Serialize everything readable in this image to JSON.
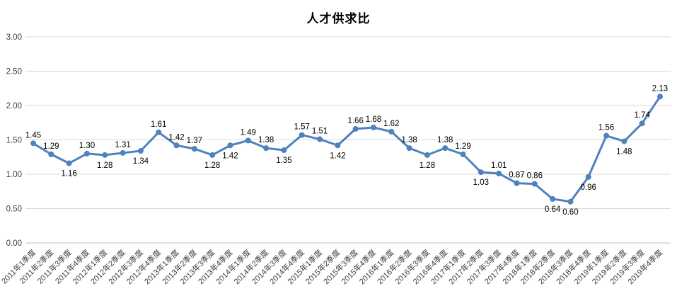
{
  "chart_data": {
    "type": "line",
    "title": "人才供求比",
    "xlabel": "",
    "ylabel": "",
    "ylim": [
      0,
      3
    ],
    "ytick_step": 0.5,
    "ytick_labels": [
      "0.00",
      "0.50",
      "1.00",
      "1.50",
      "2.00",
      "2.50",
      "3.00"
    ],
    "grid": "horizontal",
    "legend_position": "none",
    "categories": [
      "2011年1季度",
      "2011年2季度",
      "2011年3季度",
      "2011年4季度",
      "2012年1季度",
      "2012年2季度",
      "2012年3季度",
      "2012年4季度",
      "2013年1季度",
      "2013年2季度",
      "2013年3季度",
      "2013年4季度",
      "2014年1季度",
      "2014年2季度",
      "2014年3季度",
      "2014年4季度",
      "2015年1季度",
      "2015年2季度",
      "2015年3季度",
      "2015年4季度",
      "2016年1季度",
      "2016年2季度",
      "2016年3季度",
      "2016年4季度",
      "2017年1季度",
      "2017年2季度",
      "2017年3季度",
      "2017年4季度",
      "2018年1季度",
      "2018年2季度",
      "2018年3季度",
      "2018年4季度",
      "2019年1季度",
      "2019年2季度",
      "2019年3季度",
      "2019年4季度"
    ],
    "series": [
      {
        "name": "人才供求比",
        "values": [
          1.45,
          1.29,
          1.16,
          1.3,
          1.28,
          1.31,
          1.34,
          1.61,
          1.42,
          1.37,
          1.28,
          1.42,
          1.49,
          1.38,
          1.35,
          1.57,
          1.51,
          1.42,
          1.66,
          1.68,
          1.62,
          1.38,
          1.28,
          1.38,
          1.29,
          1.03,
          1.01,
          0.87,
          0.86,
          0.64,
          0.6,
          0.96,
          1.56,
          1.48,
          1.74,
          2.13
        ],
        "label_positions": [
          "above",
          "above",
          "below",
          "above",
          "below",
          "above",
          "below",
          "above",
          "above",
          "above",
          "below",
          "below",
          "above",
          "above",
          "below",
          "above",
          "above",
          "below",
          "above",
          "above",
          "above",
          "above",
          "below",
          "above",
          "above",
          "below",
          "above",
          "above",
          "above",
          "below",
          "below",
          "below",
          "above",
          "below",
          "above",
          "above"
        ]
      }
    ],
    "colors": {
      "line": "#4F81BD",
      "marker": "#4F81BD",
      "gridline": "#D9D9D9",
      "axis_line": "#BFBFBF",
      "tick_text": "#404040",
      "data_label_text": "#000000",
      "background": "#FFFFFF"
    }
  }
}
